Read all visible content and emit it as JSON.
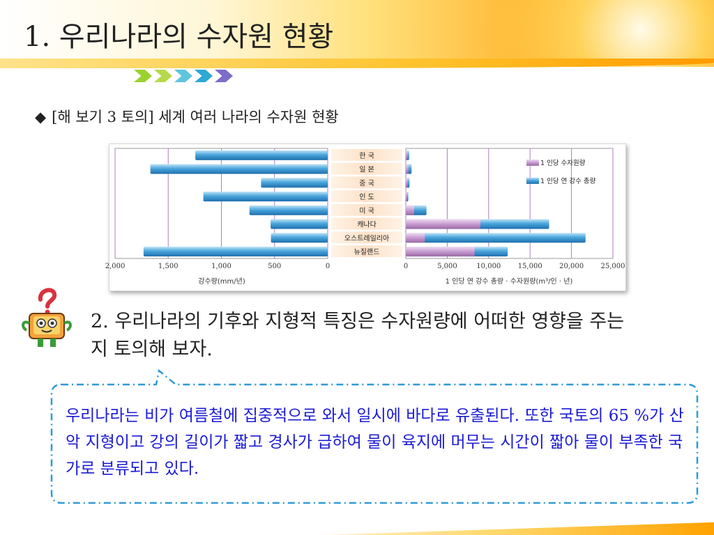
{
  "header": {
    "title": "1. 우리나라의 수자원 현황"
  },
  "section": {
    "subtitle": "[해 보기 3 토의] 세계 여러 나라의 수자원 현황",
    "bullet": "◆"
  },
  "chart_data": {
    "type": "bar",
    "categories": [
      "한 국",
      "일 본",
      "중 국",
      "인 도",
      "미 국",
      "캐나다",
      "오스트레일리아",
      "뉴질랜드"
    ],
    "left_panel": {
      "xlabel": "강수량(mm/년)",
      "xlim": [
        0,
        2000
      ],
      "ticks": [
        "2,000",
        "1,500",
        "1,000",
        "500",
        "0"
      ],
      "values": [
        1245,
        1668,
        627,
        1170,
        736,
        537,
        534,
        1732
      ]
    },
    "right_panel": {
      "xlabel": "1 인당 연 강수 총량 · 수자원량(m³/인 · 년)",
      "xlim": [
        0,
        25000
      ],
      "ticks": [
        "0",
        "5,000",
        "10,000",
        "15,000",
        "20,000",
        "25,000"
      ],
      "series": [
        {
          "name": "1 인당 수자원량",
          "values": [
            200,
            300,
            200,
            150,
            1000,
            9000,
            2300,
            8300
          ],
          "color": "#c79bd0"
        },
        {
          "name": "1 인당 연 강수 총량",
          "values": [
            400,
            700,
            450,
            300,
            2500,
            17300,
            21700,
            12300
          ],
          "color": "#4aa6dc"
        }
      ]
    }
  },
  "discussion": {
    "question": "2. 우리나라의 기후와 지형적 특징은 수자원량에 어떠한 영향을 주는지 토의해 보자.",
    "answer": "우리나라는 비가 여름철에 집중적으로 와서 일시에 바다로 유출된다. 또한 국토의 65 %가 산악 지형이고 강의 길이가 짧고 경사가 급하여 물이 육지에 머무는 시간이 짧아 물이 부족한 국가로 분류되고 있다."
  },
  "colors": {
    "chevrons": [
      "#9bd22e",
      "#b6d94a",
      "#5ec4de",
      "#2ea8d5",
      "#7d6cc9"
    ],
    "answer_text": "#1b1bd6",
    "bubble_border": "#2f9ad8"
  }
}
